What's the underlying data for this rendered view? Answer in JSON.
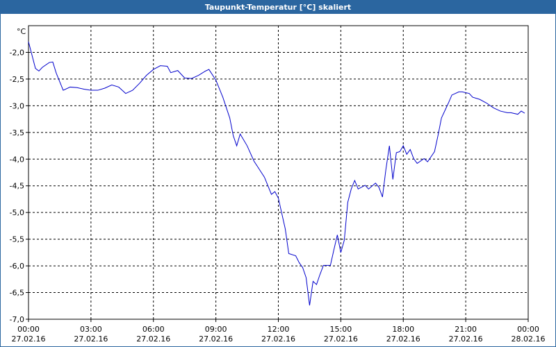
{
  "chart_data": {
    "type": "line",
    "title": "Taupunkt-Temperatur [°C] skaliert",
    "y_label": "°C",
    "x": [
      "00:00 27.02.16",
      "00:20 27.02.16",
      "00:30 27.02.16",
      "00:40 27.02.16",
      "01:00 27.02.16",
      "01:10 27.02.16",
      "01:20 27.02.16",
      "01:40 27.02.16",
      "02:00 27.02.16",
      "02:20 27.02.16",
      "02:40 27.02.16",
      "03:00 27.02.16",
      "03:20 27.02.16",
      "03:40 27.02.16",
      "04:00 27.02.16",
      "04:20 27.02.16",
      "04:40 27.02.16",
      "05:00 27.02.16",
      "05:20 27.02.16",
      "05:40 27.02.16",
      "06:00 27.02.16",
      "06:20 27.02.16",
      "06:40 27.02.16",
      "06:50 27.02.16",
      "07:10 27.02.16",
      "07:30 27.02.16",
      "07:50 27.02.16",
      "08:10 27.02.16",
      "08:30 27.02.16",
      "08:40 27.02.16",
      "09:00 27.02.16",
      "09:20 27.02.16",
      "09:40 27.02.16",
      "09:50 27.02.16",
      "10:00 27.02.16",
      "10:10 27.02.16",
      "10:30 27.02.16",
      "10:50 27.02.16",
      "11:00 27.02.16",
      "11:20 27.02.16",
      "11:40 27.02.16",
      "11:50 27.02.16",
      "12:00 27.02.16",
      "12:20 27.02.16",
      "12:30 27.02.16",
      "12:50 27.02.16",
      "13:00 27.02.16",
      "13:10 27.02.16",
      "13:20 27.02.16",
      "13:30 27.02.16",
      "13:40 27.02.16",
      "13:50 27.02.16",
      "14:00 27.02.16",
      "14:10 27.02.16",
      "14:30 27.02.16",
      "14:40 27.02.16",
      "14:50 27.02.16",
      "15:00 27.02.16",
      "15:10 27.02.16",
      "15:20 27.02.16",
      "15:30 27.02.16",
      "15:40 27.02.16",
      "15:50 27.02.16",
      "16:10 27.02.16",
      "16:20 27.02.16",
      "16:40 27.02.16",
      "16:50 27.02.16",
      "17:00 27.02.16",
      "17:10 27.02.16",
      "17:20 27.02.16",
      "17:30 27.02.16",
      "17:40 27.02.16",
      "17:50 27.02.16",
      "18:00 27.02.16",
      "18:10 27.02.16",
      "18:20 27.02.16",
      "18:30 27.02.16",
      "18:40 27.02.16",
      "19:00 27.02.16",
      "19:10 27.02.16",
      "19:30 27.02.16",
      "19:40 27.02.16",
      "19:50 27.02.16",
      "20:10 27.02.16",
      "20:20 27.02.16",
      "20:40 27.02.16",
      "20:50 27.02.16",
      "21:10 27.02.16",
      "21:20 27.02.16",
      "21:40 27.02.16",
      "22:00 27.02.16",
      "22:20 27.02.16",
      "22:40 27.02.16",
      "23:00 27.02.16",
      "23:10 27.02.16",
      "23:30 27.02.16",
      "23:40 27.02.16",
      "23:50 27.02.16"
    ],
    "series": [
      {
        "name": "Taupunkt",
        "color": "#0000cc",
        "values": [
          -1.8,
          -2.3,
          -2.35,
          -2.28,
          -2.19,
          -2.18,
          -2.39,
          -2.71,
          -2.65,
          -2.66,
          -2.69,
          -2.71,
          -2.71,
          -2.67,
          -2.61,
          -2.65,
          -2.77,
          -2.71,
          -2.58,
          -2.43,
          -2.32,
          -2.25,
          -2.26,
          -2.38,
          -2.34,
          -2.48,
          -2.49,
          -2.43,
          -2.35,
          -2.32,
          -2.52,
          -2.84,
          -3.23,
          -3.56,
          -3.75,
          -3.53,
          -3.75,
          -4.04,
          -4.14,
          -4.34,
          -4.66,
          -4.61,
          -4.73,
          -5.31,
          -5.77,
          -5.81,
          -5.94,
          -6.03,
          -6.22,
          -6.74,
          -6.29,
          -6.35,
          -6.16,
          -5.99,
          -5.99,
          -5.7,
          -5.42,
          -5.75,
          -5.52,
          -4.81,
          -4.56,
          -4.4,
          -4.56,
          -4.49,
          -4.56,
          -4.45,
          -4.53,
          -4.71,
          -4.19,
          -3.75,
          -4.38,
          -3.88,
          -3.86,
          -3.75,
          -3.91,
          -3.82,
          -3.99,
          -4.08,
          -3.99,
          -4.05,
          -3.86,
          -3.56,
          -3.23,
          -2.95,
          -2.8,
          -2.74,
          -2.74,
          -2.77,
          -2.84,
          -2.88,
          -2.95,
          -3.04,
          -3.1,
          -3.13,
          -3.13,
          -3.16,
          -3.1,
          -3.14
        ]
      }
    ],
    "xlim": [
      "00:00 27.02.16",
      "00:00 28.02.16"
    ],
    "xticks": [
      "00:00 27.02.16",
      "03:00 27.02.16",
      "06:00 27.02.16",
      "09:00 27.02.16",
      "12:00 27.02.16",
      "15:00 27.02.16",
      "18:00 27.02.16",
      "21:00 27.02.16",
      "00:00 28.02.16"
    ],
    "ylim": [
      -7,
      -1.5
    ],
    "yticks": [
      {
        "value": -7,
        "label": "-7,0"
      },
      {
        "value": -6.5,
        "label": "-6,5"
      },
      {
        "value": -6,
        "label": "-6,0"
      },
      {
        "value": -5.5,
        "label": "-5,5"
      },
      {
        "value": -5,
        "label": "-5,0"
      },
      {
        "value": -4.5,
        "label": "-4,5"
      },
      {
        "value": -4,
        "label": "-4,0"
      },
      {
        "value": -3.5,
        "label": "-3,5"
      },
      {
        "value": -3,
        "label": "-3,0"
      },
      {
        "value": -2.5,
        "label": "-2,5"
      },
      {
        "value": -2,
        "label": "-2,0"
      }
    ],
    "grid": true
  }
}
